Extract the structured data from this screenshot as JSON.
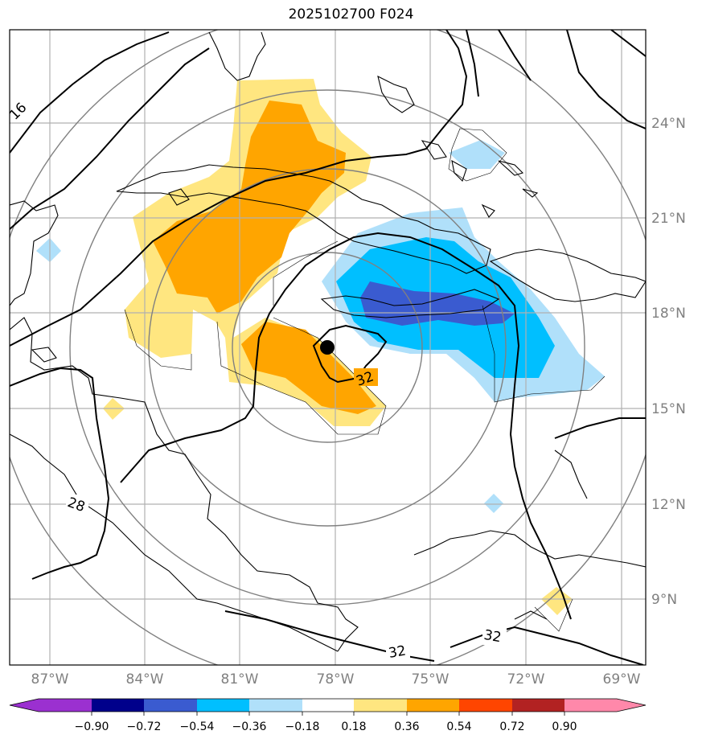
{
  "title": "2025102700 F024",
  "lat_labels": [
    "24°N",
    "21°N",
    "18°N",
    "15°N",
    "12°N",
    "9°N"
  ],
  "lon_labels": [
    "87°W",
    "84°W",
    "81°W",
    "78°W",
    "75°W",
    "72°W",
    "69°W"
  ],
  "contour_labels": [
    "16",
    "28",
    "32",
    "32",
    "32"
  ],
  "colorbar": {
    "ticks": [
      "−0.90",
      "−0.72",
      "−0.54",
      "−0.36",
      "−0.18",
      "0.18",
      "0.36",
      "0.54",
      "0.72",
      "0.90"
    ],
    "colors": [
      "#9b30d0",
      "#00008b",
      "#3a5bd0",
      "#00bfff",
      "#b0e0fa",
      "#ffffff",
      "#ffe680",
      "#ffa500",
      "#ff4500",
      "#b22222",
      "#ff88aa"
    ]
  },
  "shading_colors": {
    "light_yellow": "#ffe680",
    "orange": "#ffa500",
    "light_blue": "#b0e0fa",
    "blue": "#00bfff",
    "dark_blue": "#3a5bd0"
  },
  "storm_marker": "filled-circle"
}
